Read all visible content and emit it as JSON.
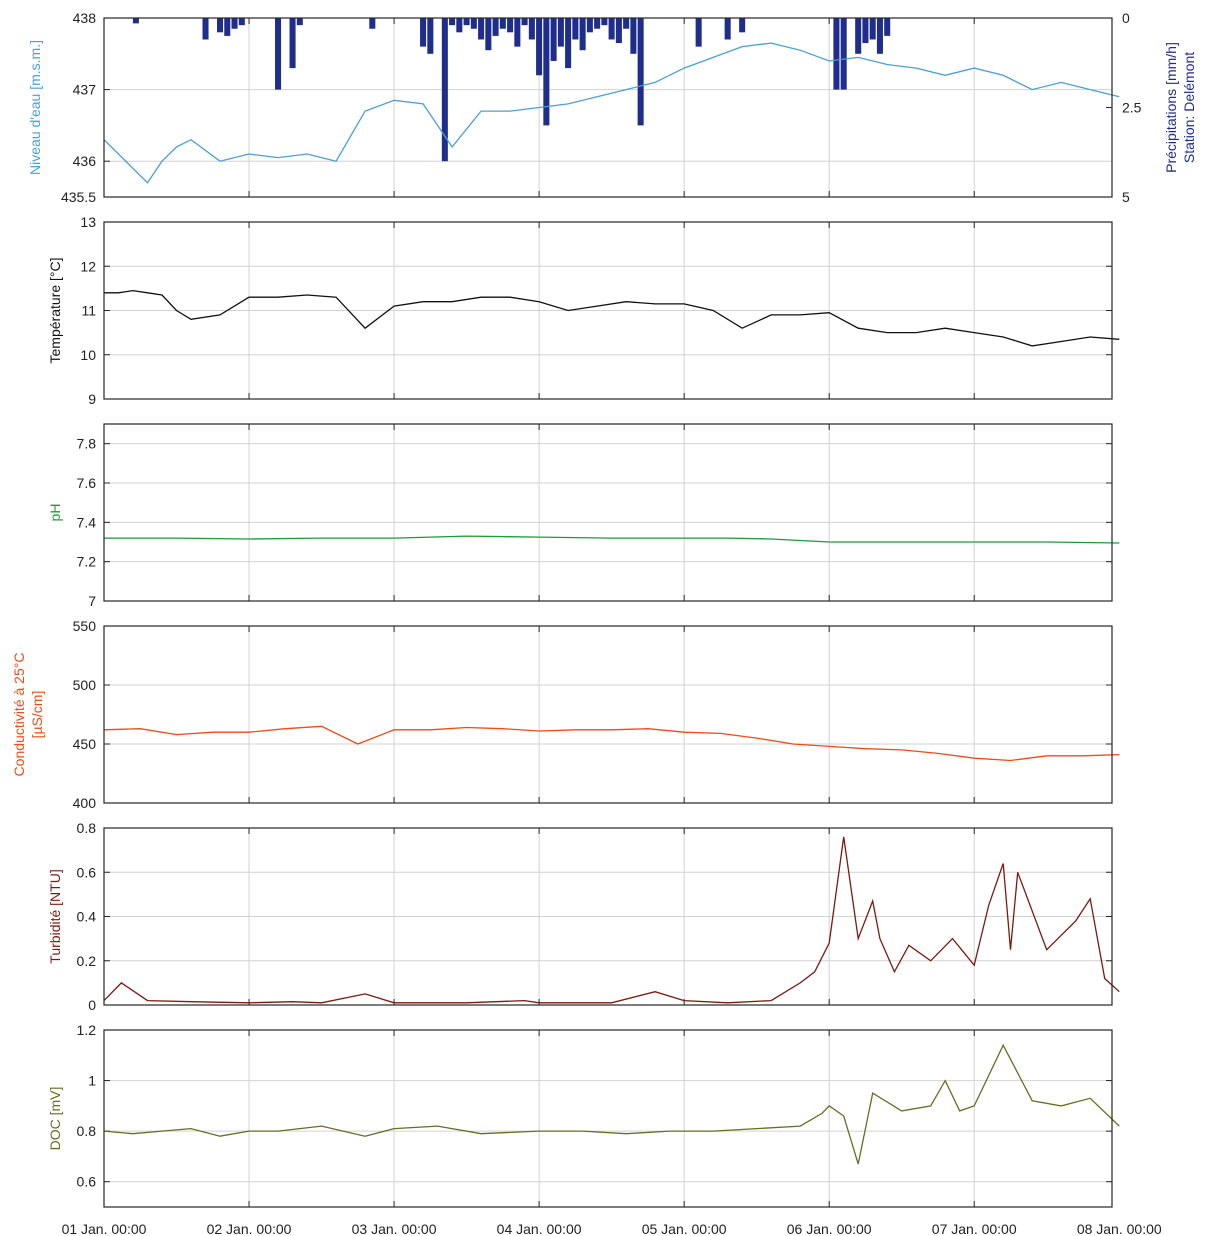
{
  "chart_data": [
    {
      "id": "water-level-precip",
      "type": "line",
      "ylabel": "Niveau d'eau [m.s.m.]",
      "ylim": [
        435.5,
        438
      ],
      "yticks": [
        "435.5",
        "436",
        "437",
        "438"
      ],
      "ytick_values": [
        435.5,
        436,
        437,
        438
      ],
      "line_color": "#4a9fd6",
      "x": [
        0,
        0.1,
        0.2,
        0.3,
        0.4,
        0.5,
        0.6,
        0.8,
        1.0,
        1.2,
        1.4,
        1.6,
        1.8,
        2.0,
        2.2,
        2.4,
        2.6,
        2.8,
        3.0,
        3.2,
        3.4,
        3.6,
        3.8,
        4.0,
        4.2,
        4.4,
        4.6,
        4.8,
        5.0,
        5.2,
        5.4,
        5.6,
        5.8,
        6.0,
        6.2,
        6.4,
        6.6,
        6.8,
        7.0
      ],
      "y": [
        436.3,
        436.1,
        435.9,
        435.7,
        436.0,
        436.2,
        436.3,
        436.0,
        436.1,
        436.05,
        436.1,
        436.0,
        436.7,
        436.85,
        436.8,
        436.2,
        436.7,
        436.7,
        436.75,
        436.8,
        436.9,
        437.0,
        437.1,
        437.3,
        437.45,
        437.6,
        437.65,
        437.55,
        437.4,
        437.45,
        437.35,
        437.3,
        437.2,
        437.3,
        437.2,
        437.0,
        437.1,
        437.0,
        436.9
      ],
      "secondary": {
        "type": "bar",
        "ylabel": "Précipitations [mm/h]",
        "ylabel2": "Station: Delémont",
        "ylim": [
          0,
          5
        ],
        "inverted": true,
        "yticks": [
          "0",
          "2.5",
          "5"
        ],
        "ytick_values": [
          0,
          2.5,
          5
        ],
        "color": "#1f2d8c",
        "x": [
          0.22,
          0.7,
          0.8,
          0.85,
          0.9,
          0.95,
          1.2,
          1.3,
          1.35,
          1.85,
          2.2,
          2.25,
          2.35,
          2.4,
          2.45,
          2.5,
          2.55,
          2.6,
          2.65,
          2.7,
          2.75,
          2.8,
          2.85,
          2.9,
          2.95,
          3.0,
          3.05,
          3.1,
          3.15,
          3.2,
          3.25,
          3.3,
          3.35,
          3.4,
          3.45,
          3.5,
          3.55,
          3.6,
          3.65,
          3.7,
          4.1,
          4.3,
          4.4,
          5.05,
          5.1,
          5.2,
          5.25,
          5.3,
          5.35,
          5.4
        ],
        "values": [
          0.15,
          0.6,
          0.4,
          0.5,
          0.3,
          0.2,
          2.0,
          1.4,
          0.2,
          0.3,
          0.8,
          1.0,
          4.0,
          0.2,
          0.4,
          0.2,
          0.3,
          0.6,
          0.9,
          0.5,
          0.3,
          0.4,
          0.8,
          0.2,
          0.6,
          1.6,
          3.0,
          1.2,
          0.8,
          1.4,
          0.6,
          0.9,
          0.4,
          0.3,
          0.2,
          0.6,
          0.7,
          0.3,
          1.0,
          3.0,
          0.8,
          0.6,
          0.4,
          2.0,
          2.0,
          1.0,
          0.7,
          0.6,
          1.0,
          0.5
        ]
      }
    },
    {
      "id": "temperature",
      "type": "line",
      "ylabel": "Température [°C]",
      "ylim": [
        9,
        13
      ],
      "yticks": [
        "9",
        "10",
        "11",
        "12",
        "13"
      ],
      "ytick_values": [
        9,
        10,
        11,
        12,
        13
      ],
      "line_color": "#111111",
      "x": [
        0,
        0.1,
        0.2,
        0.3,
        0.4,
        0.5,
        0.6,
        0.8,
        1.0,
        1.2,
        1.4,
        1.6,
        1.8,
        2.0,
        2.2,
        2.4,
        2.6,
        2.8,
        3.0,
        3.2,
        3.4,
        3.6,
        3.8,
        4.0,
        4.2,
        4.4,
        4.6,
        4.8,
        5.0,
        5.2,
        5.4,
        5.6,
        5.8,
        6.0,
        6.2,
        6.4,
        6.6,
        6.8,
        7.0
      ],
      "y": [
        11.4,
        11.4,
        11.45,
        11.4,
        11.35,
        11.0,
        10.8,
        10.9,
        11.3,
        11.3,
        11.35,
        11.3,
        10.6,
        11.1,
        11.2,
        11.2,
        11.3,
        11.3,
        11.2,
        11.0,
        11.1,
        11.2,
        11.15,
        11.15,
        11.0,
        10.6,
        10.9,
        10.9,
        10.95,
        10.6,
        10.5,
        10.5,
        10.6,
        10.5,
        10.4,
        10.2,
        10.3,
        10.4,
        10.35
      ]
    },
    {
      "id": "ph",
      "type": "line",
      "ylabel": "pH",
      "ylim": [
        7,
        7.9
      ],
      "yticks": [
        "7",
        "7.2",
        "7.4",
        "7.6",
        "7.8"
      ],
      "ytick_values": [
        7,
        7.2,
        7.4,
        7.6,
        7.8
      ],
      "line_color": "#1f9a3a",
      "x": [
        0,
        0.5,
        1.0,
        1.5,
        2.0,
        2.5,
        3.0,
        3.5,
        4.0,
        4.3,
        4.6,
        5.0,
        5.5,
        6.0,
        6.5,
        7.0
      ],
      "y": [
        7.32,
        7.32,
        7.315,
        7.32,
        7.32,
        7.33,
        7.325,
        7.32,
        7.32,
        7.32,
        7.315,
        7.3,
        7.3,
        7.3,
        7.3,
        7.295
      ]
    },
    {
      "id": "conductivity",
      "type": "line",
      "ylabel": "Conductivité à 25°C",
      "ylabel2": "[µS/cm]",
      "ylim": [
        400,
        550
      ],
      "yticks": [
        "400",
        "450",
        "500",
        "550"
      ],
      "ytick_values": [
        400,
        450,
        500,
        550
      ],
      "line_color": "#f04a17",
      "x": [
        0,
        0.25,
        0.5,
        0.75,
        1.0,
        1.25,
        1.5,
        1.75,
        2.0,
        2.25,
        2.5,
        2.75,
        3.0,
        3.25,
        3.5,
        3.75,
        4.0,
        4.25,
        4.5,
        4.75,
        5.0,
        5.25,
        5.5,
        5.75,
        6.0,
        6.25,
        6.5,
        6.75,
        7.0
      ],
      "y": [
        462,
        463,
        458,
        460,
        460,
        463,
        465,
        450,
        462,
        462,
        464,
        463,
        461,
        462,
        462,
        463,
        460,
        459,
        455,
        450,
        448,
        446,
        445,
        442,
        438,
        436,
        440,
        440,
        441
      ]
    },
    {
      "id": "turbidity",
      "type": "line",
      "ylabel": "Turbidité [NTU]",
      "ylim": [
        0,
        0.8
      ],
      "yticks": [
        "0",
        "0.2",
        "0.4",
        "0.6",
        "0.8"
      ],
      "ytick_values": [
        0,
        0.2,
        0.4,
        0.6,
        0.8
      ],
      "line_color": "#7a1a10",
      "x": [
        0,
        0.12,
        0.3,
        0.6,
        1.0,
        1.3,
        1.5,
        1.8,
        2.0,
        2.5,
        2.9,
        3.0,
        3.5,
        3.8,
        4.0,
        4.3,
        4.6,
        4.8,
        4.9,
        5.0,
        5.1,
        5.2,
        5.3,
        5.35,
        5.45,
        5.55,
        5.7,
        5.85,
        6.0,
        6.1,
        6.2,
        6.25,
        6.3,
        6.5,
        6.7,
        6.8,
        6.9,
        7.0
      ],
      "y": [
        0.02,
        0.1,
        0.02,
        0.015,
        0.01,
        0.015,
        0.01,
        0.05,
        0.01,
        0.01,
        0.02,
        0.01,
        0.01,
        0.06,
        0.02,
        0.01,
        0.02,
        0.1,
        0.15,
        0.28,
        0.76,
        0.3,
        0.47,
        0.3,
        0.15,
        0.27,
        0.2,
        0.3,
        0.18,
        0.45,
        0.64,
        0.25,
        0.6,
        0.25,
        0.38,
        0.48,
        0.12,
        0.06
      ]
    },
    {
      "id": "doc",
      "type": "line",
      "ylabel": "DOC [mV]",
      "ylim": [
        0.5,
        1.2
      ],
      "yticks": [
        "0.6",
        "0.8",
        "1",
        "1.2"
      ],
      "ytick_values": [
        0.6,
        0.8,
        1,
        1.2
      ],
      "line_color": "#6b6b24",
      "x": [
        0,
        0.2,
        0.4,
        0.6,
        0.8,
        1.0,
        1.2,
        1.5,
        1.8,
        2.0,
        2.3,
        2.6,
        3.0,
        3.3,
        3.6,
        3.9,
        4.2,
        4.5,
        4.8,
        4.95,
        5.0,
        5.1,
        5.2,
        5.3,
        5.5,
        5.7,
        5.8,
        5.9,
        6.0,
        6.2,
        6.4,
        6.6,
        6.8,
        7.0
      ],
      "y": [
        0.8,
        0.79,
        0.8,
        0.81,
        0.78,
        0.8,
        0.8,
        0.82,
        0.78,
        0.81,
        0.82,
        0.79,
        0.8,
        0.8,
        0.79,
        0.8,
        0.8,
        0.81,
        0.82,
        0.87,
        0.9,
        0.86,
        0.67,
        0.95,
        0.88,
        0.9,
        1.0,
        0.88,
        0.9,
        1.14,
        0.92,
        0.9,
        0.93,
        0.82
      ]
    }
  ],
  "xaxis": {
    "tick_labels": [
      "01 Jan. 00:00",
      "02 Jan. 00:00",
      "03 Jan. 00:00",
      "04 Jan. 00:00",
      "05 Jan. 00:00",
      "06 Jan. 00:00",
      "07 Jan. 00:00",
      "08 Jan. 00:00"
    ],
    "tick_values": [
      0,
      1,
      2,
      3,
      4,
      5,
      6,
      7
    ],
    "xlim": [
      0,
      6.95
    ]
  },
  "colors": {
    "axis": "#262626",
    "grid": "#d2d2d2"
  }
}
